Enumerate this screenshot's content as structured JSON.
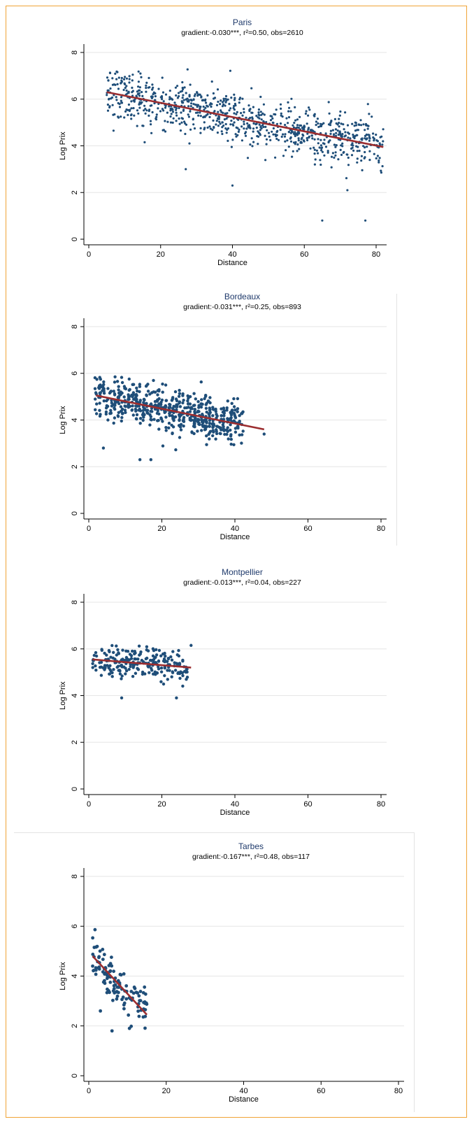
{
  "colors": {
    "points": "#1f4e79",
    "fit_line": "#9b2d2f",
    "title": "#1f3a6b",
    "axis": "#000000",
    "grid": "#e6e6e6",
    "frame": "#f0a436"
  },
  "chart_data": [
    {
      "type": "scatter",
      "title": "Paris",
      "subtitle": "gradient:-0.030***, r²=0.50, obs=2610",
      "xlabel": "Distance",
      "ylabel": "Log Prix",
      "xlim": [
        0,
        80
      ],
      "ylim": [
        0,
        8
      ],
      "x_ticks": [
        "0",
        "20",
        "40",
        "60",
        "80"
      ],
      "y_ticks": [
        "0",
        "2",
        "4",
        "6",
        "8"
      ],
      "grid": true,
      "observations": 2610,
      "fit": {
        "slope": -0.03,
        "x0": 5,
        "y0": 6.3,
        "x1": 82,
        "y1": 3.95
      },
      "x_range_points": [
        5,
        82
      ],
      "residual_sd": 0.55,
      "point_size": 1.6,
      "point_count_drawn": 900,
      "extra_points": [
        [
          65,
          0.8
        ],
        [
          77,
          0.8
        ],
        [
          72,
          2.1
        ],
        [
          40,
          2.3
        ],
        [
          27,
          3.0
        ]
      ]
    },
    {
      "type": "scatter",
      "title": "Bordeaux",
      "subtitle": "gradient:-0.031***, r²=0.25, obs=893",
      "xlabel": "Distance",
      "ylabel": "Log Prix",
      "xlim": [
        0,
        80
      ],
      "ylim": [
        0,
        8
      ],
      "x_ticks": [
        "0",
        "20",
        "40",
        "60",
        "80"
      ],
      "y_ticks": [
        "0",
        "2",
        "4",
        "6",
        "8"
      ],
      "grid": true,
      "observations": 893,
      "fit": {
        "slope": -0.031,
        "x0": 2,
        "y0": 5.05,
        "x1": 48,
        "y1": 3.6
      },
      "x_range_points": [
        2,
        42
      ],
      "residual_sd": 0.45,
      "point_size": 2.2,
      "point_count_drawn": 600,
      "extra_points": [
        [
          48,
          3.4
        ],
        [
          14,
          2.3
        ],
        [
          17,
          2.3
        ],
        [
          4,
          2.8
        ]
      ]
    },
    {
      "type": "scatter",
      "title": "Montpellier",
      "subtitle": "gradient:-0.013***, r²=0.04, obs=227",
      "xlabel": "Distance",
      "ylabel": "Log Prix",
      "xlim": [
        0,
        80
      ],
      "ylim": [
        0,
        8
      ],
      "x_ticks": [
        "0",
        "20",
        "40",
        "60",
        "80"
      ],
      "y_ticks": [
        "0",
        "2",
        "4",
        "6",
        "8"
      ],
      "grid": true,
      "observations": 227,
      "fit": {
        "slope": -0.013,
        "x0": 1,
        "y0": 5.55,
        "x1": 28,
        "y1": 5.2
      },
      "x_range_points": [
        1,
        27
      ],
      "residual_sd": 0.35,
      "point_size": 2.2,
      "point_count_drawn": 227,
      "extra_points": [
        [
          28,
          6.15
        ],
        [
          9,
          3.9
        ],
        [
          24,
          3.9
        ]
      ]
    },
    {
      "type": "scatter",
      "title": "Tarbes",
      "subtitle": "gradient:-0.167***, r²=0.48, obs=117",
      "xlabel": "Distance",
      "ylabel": "Log Prix",
      "xlim": [
        0,
        80
      ],
      "ylim": [
        0,
        8
      ],
      "x_ticks": [
        "0",
        "20",
        "40",
        "60",
        "80"
      ],
      "y_ticks": [
        "0",
        "2",
        "4",
        "6",
        "8"
      ],
      "grid": true,
      "observations": 117,
      "fit": {
        "slope": -0.167,
        "x0": 1,
        "y0": 4.8,
        "x1": 15,
        "y1": 2.45
      },
      "x_range_points": [
        1,
        15
      ],
      "residual_sd": 0.45,
      "point_size": 2.4,
      "point_count_drawn": 117,
      "extra_points": [
        [
          6,
          1.8
        ],
        [
          10.5,
          1.9
        ],
        [
          3,
          2.6
        ],
        [
          1,
          4.4
        ]
      ]
    }
  ]
}
